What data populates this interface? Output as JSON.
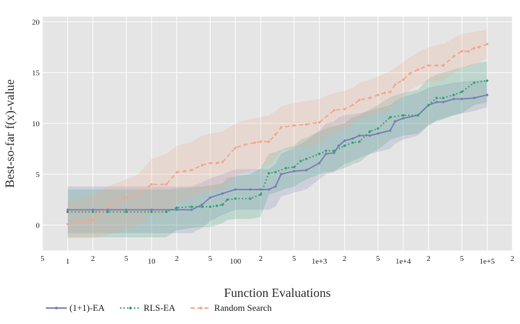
{
  "chart_data": {
    "type": "line",
    "title": "",
    "xlabel": "Function Evaluations",
    "ylabel": "Best-so-far f(x)-value",
    "x_scale": "log",
    "xlim": [
      0.5,
      200000
    ],
    "ylim": [
      -2.5,
      20.5
    ],
    "grid": true,
    "legend_position": "bottom-left",
    "y_ticks": [
      "0",
      "5",
      "10",
      "15",
      "20"
    ],
    "x_ticks": [
      {
        "value": 0.5,
        "label": "5"
      },
      {
        "value": 1,
        "label": "1"
      },
      {
        "value": 2,
        "label": "2"
      },
      {
        "value": 5,
        "label": "5"
      },
      {
        "value": 10,
        "label": "10"
      },
      {
        "value": 20,
        "label": "2"
      },
      {
        "value": 50,
        "label": "5"
      },
      {
        "value": 100,
        "label": "100"
      },
      {
        "value": 200,
        "label": "2"
      },
      {
        "value": 500,
        "label": "5"
      },
      {
        "value": 1000,
        "label": "1e+3"
      },
      {
        "value": 2000,
        "label": "2"
      },
      {
        "value": 5000,
        "label": "5"
      },
      {
        "value": 10000,
        "label": "1e+4"
      },
      {
        "value": 20000,
        "label": "2"
      },
      {
        "value": 50000,
        "label": "5"
      },
      {
        "value": 100000,
        "label": "1e+5"
      },
      {
        "value": 200000,
        "label": "2"
      }
    ],
    "series": [
      {
        "name": "(1+1)-EA",
        "color": "#7b82b5",
        "dash": "solid",
        "x": [
          1,
          2,
          3,
          5,
          10,
          20,
          30,
          40,
          50,
          70,
          100,
          150,
          200,
          250,
          300,
          350,
          500,
          700,
          1000,
          1200,
          1500,
          1700,
          2000,
          2500,
          3000,
          4000,
          5000,
          7000,
          8000,
          10000,
          15000,
          20000,
          25000,
          30000,
          40000,
          50000,
          70000,
          100000
        ],
        "y": [
          1.5,
          1.5,
          1.5,
          1.5,
          1.5,
          1.5,
          1.5,
          2.0,
          2.7,
          3.1,
          3.5,
          3.5,
          3.5,
          3.5,
          3.8,
          5.0,
          5.3,
          5.4,
          6.1,
          7.0,
          7.1,
          7.8,
          8.3,
          8.5,
          8.8,
          8.8,
          9.0,
          9.3,
          10.2,
          10.5,
          10.8,
          11.8,
          12.1,
          12.1,
          12.4,
          12.4,
          12.5,
          12.8
        ],
        "band_upper": [
          3.8,
          3.8,
          3.8,
          3.8,
          3.8,
          3.8,
          3.8,
          4.2,
          4.6,
          5.0,
          5.5,
          5.5,
          5.5,
          5.5,
          6.0,
          7.0,
          7.6,
          8.3,
          9.3,
          10.0,
          10.2,
          10.6,
          10.8,
          10.9,
          11.0,
          11.2,
          11.5,
          11.8,
          12.2,
          12.6,
          13.0,
          13.5,
          13.7,
          13.8,
          14.0,
          14.1,
          14.2,
          14.3
        ],
        "band_lower": [
          -0.8,
          -0.8,
          -0.8,
          -0.8,
          -0.8,
          -0.8,
          -0.8,
          -0.3,
          0.4,
          1.0,
          1.5,
          1.5,
          1.5,
          1.5,
          1.8,
          2.8,
          3.2,
          3.5,
          4.5,
          5.0,
          5.2,
          5.6,
          6.0,
          6.3,
          6.6,
          7.0,
          7.2,
          7.5,
          8.0,
          8.4,
          8.8,
          9.8,
          10.3,
          10.5,
          10.8,
          11.0,
          11.2,
          11.6
        ]
      },
      {
        "name": "RLS-EA",
        "color": "#3aa27a",
        "dash": "dot",
        "x": [
          1,
          2,
          3,
          5,
          10,
          15,
          20,
          30,
          40,
          50,
          60,
          70,
          80,
          100,
          150,
          200,
          250,
          300,
          400,
          500,
          600,
          700,
          1000,
          1200,
          1500,
          2000,
          2500,
          3000,
          4000,
          5000,
          7000,
          10000,
          15000,
          20000,
          25000,
          30000,
          40000,
          50000,
          70000,
          100000
        ],
        "y": [
          1.3,
          1.3,
          1.3,
          1.3,
          1.3,
          1.3,
          1.7,
          1.8,
          1.8,
          1.8,
          1.9,
          2.0,
          2.5,
          2.6,
          2.6,
          3.0,
          5.1,
          5.2,
          5.6,
          5.7,
          6.3,
          6.5,
          7.0,
          7.3,
          7.3,
          7.8,
          8.1,
          8.2,
          9.2,
          9.5,
          10.6,
          10.8,
          10.8,
          11.8,
          12.5,
          12.5,
          12.8,
          13.1,
          14.0,
          14.2
        ],
        "band_upper": [
          3.5,
          3.5,
          3.5,
          3.5,
          3.5,
          3.5,
          3.6,
          3.7,
          3.8,
          3.9,
          4.0,
          4.1,
          4.6,
          4.8,
          5.0,
          5.6,
          7.0,
          7.2,
          7.6,
          7.8,
          8.4,
          8.6,
          9.2,
          9.5,
          9.7,
          10.0,
          10.6,
          10.8,
          11.4,
          11.8,
          12.6,
          13.0,
          13.3,
          14.4,
          14.8,
          15.0,
          15.3,
          15.5,
          15.9,
          16.1
        ],
        "band_lower": [
          -1.2,
          -1.2,
          -1.2,
          -1.2,
          -1.2,
          -1.2,
          -0.5,
          -0.3,
          -0.2,
          -0.2,
          0.0,
          0.2,
          0.5,
          0.6,
          0.6,
          0.8,
          3.0,
          3.2,
          3.6,
          3.8,
          4.2,
          4.5,
          5.0,
          5.2,
          5.3,
          5.6,
          6.0,
          6.2,
          7.0,
          7.4,
          8.4,
          8.8,
          9.0,
          9.8,
          10.2,
          10.4,
          10.8,
          11.0,
          11.8,
          12.1
        ]
      },
      {
        "name": "Random Search",
        "color": "#f2a98f",
        "dash": "dash",
        "x": [
          1,
          1.5,
          2,
          3,
          4,
          5,
          7,
          10,
          15,
          20,
          25,
          30,
          40,
          50,
          60,
          70,
          100,
          130,
          170,
          200,
          250,
          300,
          350,
          500,
          700,
          1000,
          1500,
          2000,
          2500,
          3000,
          4000,
          5000,
          6000,
          7000,
          8000,
          10000,
          12000,
          15000,
          20000,
          25000,
          30000,
          40000,
          50000,
          60000,
          70000,
          80000,
          100000
        ],
        "y": [
          0.1,
          0.3,
          0.5,
          1.8,
          2.5,
          2.7,
          3.0,
          4.0,
          4.0,
          5.2,
          5.3,
          5.4,
          5.9,
          6.1,
          6.1,
          6.2,
          7.6,
          7.9,
          8.1,
          8.2,
          8.2,
          8.9,
          9.6,
          9.8,
          9.9,
          10.1,
          11.3,
          11.4,
          11.8,
          12.3,
          12.5,
          12.8,
          13.0,
          13.1,
          13.8,
          14.3,
          14.9,
          15.3,
          15.7,
          15.7,
          15.7,
          16.6,
          17.1,
          17.1,
          17.4,
          17.5,
          17.8
        ],
        "band_upper": [
          2.3,
          2.6,
          3.0,
          3.8,
          4.2,
          4.5,
          5.0,
          6.5,
          7.0,
          7.8,
          8.0,
          8.2,
          8.8,
          9.0,
          9.1,
          9.2,
          10.0,
          10.3,
          10.5,
          10.6,
          10.8,
          11.2,
          11.7,
          12.0,
          12.2,
          12.4,
          13.0,
          13.2,
          13.5,
          14.0,
          14.3,
          14.6,
          14.9,
          15.1,
          15.5,
          16.0,
          16.5,
          17.0,
          17.5,
          17.7,
          17.8,
          18.4,
          18.8,
          18.9,
          19.0,
          19.1,
          19.2
        ],
        "band_lower": [
          -1.3,
          -1.3,
          -1.3,
          -1.0,
          -0.6,
          -0.4,
          0.0,
          1.0,
          1.2,
          2.2,
          2.4,
          2.6,
          3.1,
          3.3,
          3.4,
          3.5,
          4.8,
          5.2,
          5.5,
          5.7,
          5.9,
          6.5,
          7.3,
          7.6,
          7.8,
          8.0,
          9.2,
          9.4,
          9.9,
          10.4,
          10.7,
          11.0,
          11.2,
          11.4,
          12.1,
          12.6,
          13.3,
          13.7,
          14.1,
          14.1,
          14.2,
          15.0,
          15.5,
          15.6,
          15.9,
          16.0,
          16.4
        ]
      }
    ]
  }
}
